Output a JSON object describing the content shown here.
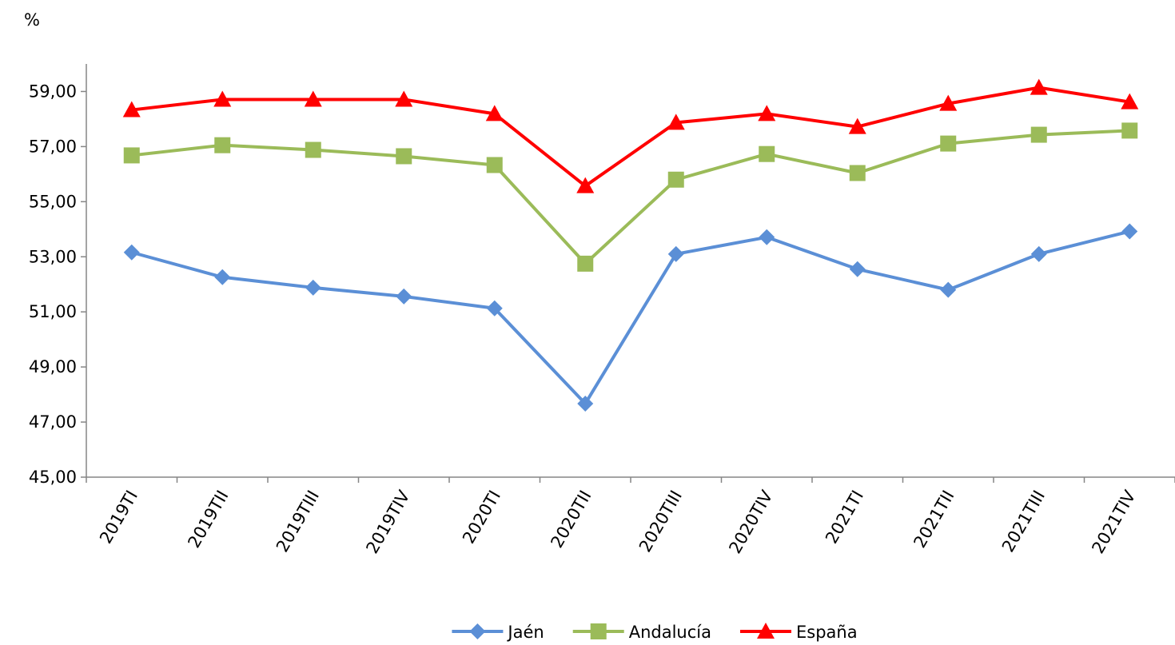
{
  "chart_data": {
    "type": "line",
    "y_label": "%",
    "categories": [
      "2019TI",
      "2019TII",
      "2019TIII",
      "2019TIV",
      "2020TI",
      "2020TII",
      "2020TIII",
      "2020TIV",
      "2021TI",
      "2021TII",
      "2021TIII",
      "2021TIV"
    ],
    "series": [
      {
        "name": "Jaén",
        "color": "#5b8fd6",
        "marker": "diamond",
        "values": [
          53.16,
          52.26,
          51.88,
          51.56,
          51.13,
          47.67,
          53.1,
          53.71,
          52.55,
          51.8,
          53.1,
          53.92
        ]
      },
      {
        "name": "Andalucía",
        "color": "#9bbb59",
        "marker": "square",
        "values": [
          56.68,
          57.05,
          56.88,
          56.65,
          56.33,
          52.75,
          55.8,
          56.73,
          56.04,
          57.11,
          57.43,
          57.58
        ]
      },
      {
        "name": "España",
        "color": "#ff0000",
        "marker": "triangle",
        "values": [
          58.33,
          58.71,
          58.71,
          58.71,
          58.19,
          55.57,
          57.87,
          58.19,
          57.72,
          58.56,
          59.14,
          58.62
        ]
      }
    ],
    "ylim": [
      45,
      60
    ],
    "yticks": [
      {
        "value": 45,
        "label": "45,00"
      },
      {
        "value": 47,
        "label": "47,00"
      },
      {
        "value": 49,
        "label": "49,00"
      },
      {
        "value": 51,
        "label": "51,00"
      },
      {
        "value": 53,
        "label": "53,00"
      },
      {
        "value": 55,
        "label": "55,00"
      },
      {
        "value": 57,
        "label": "57,00"
      },
      {
        "value": 59,
        "label": "59,00"
      }
    ],
    "grid": false,
    "legend": "bottom"
  }
}
